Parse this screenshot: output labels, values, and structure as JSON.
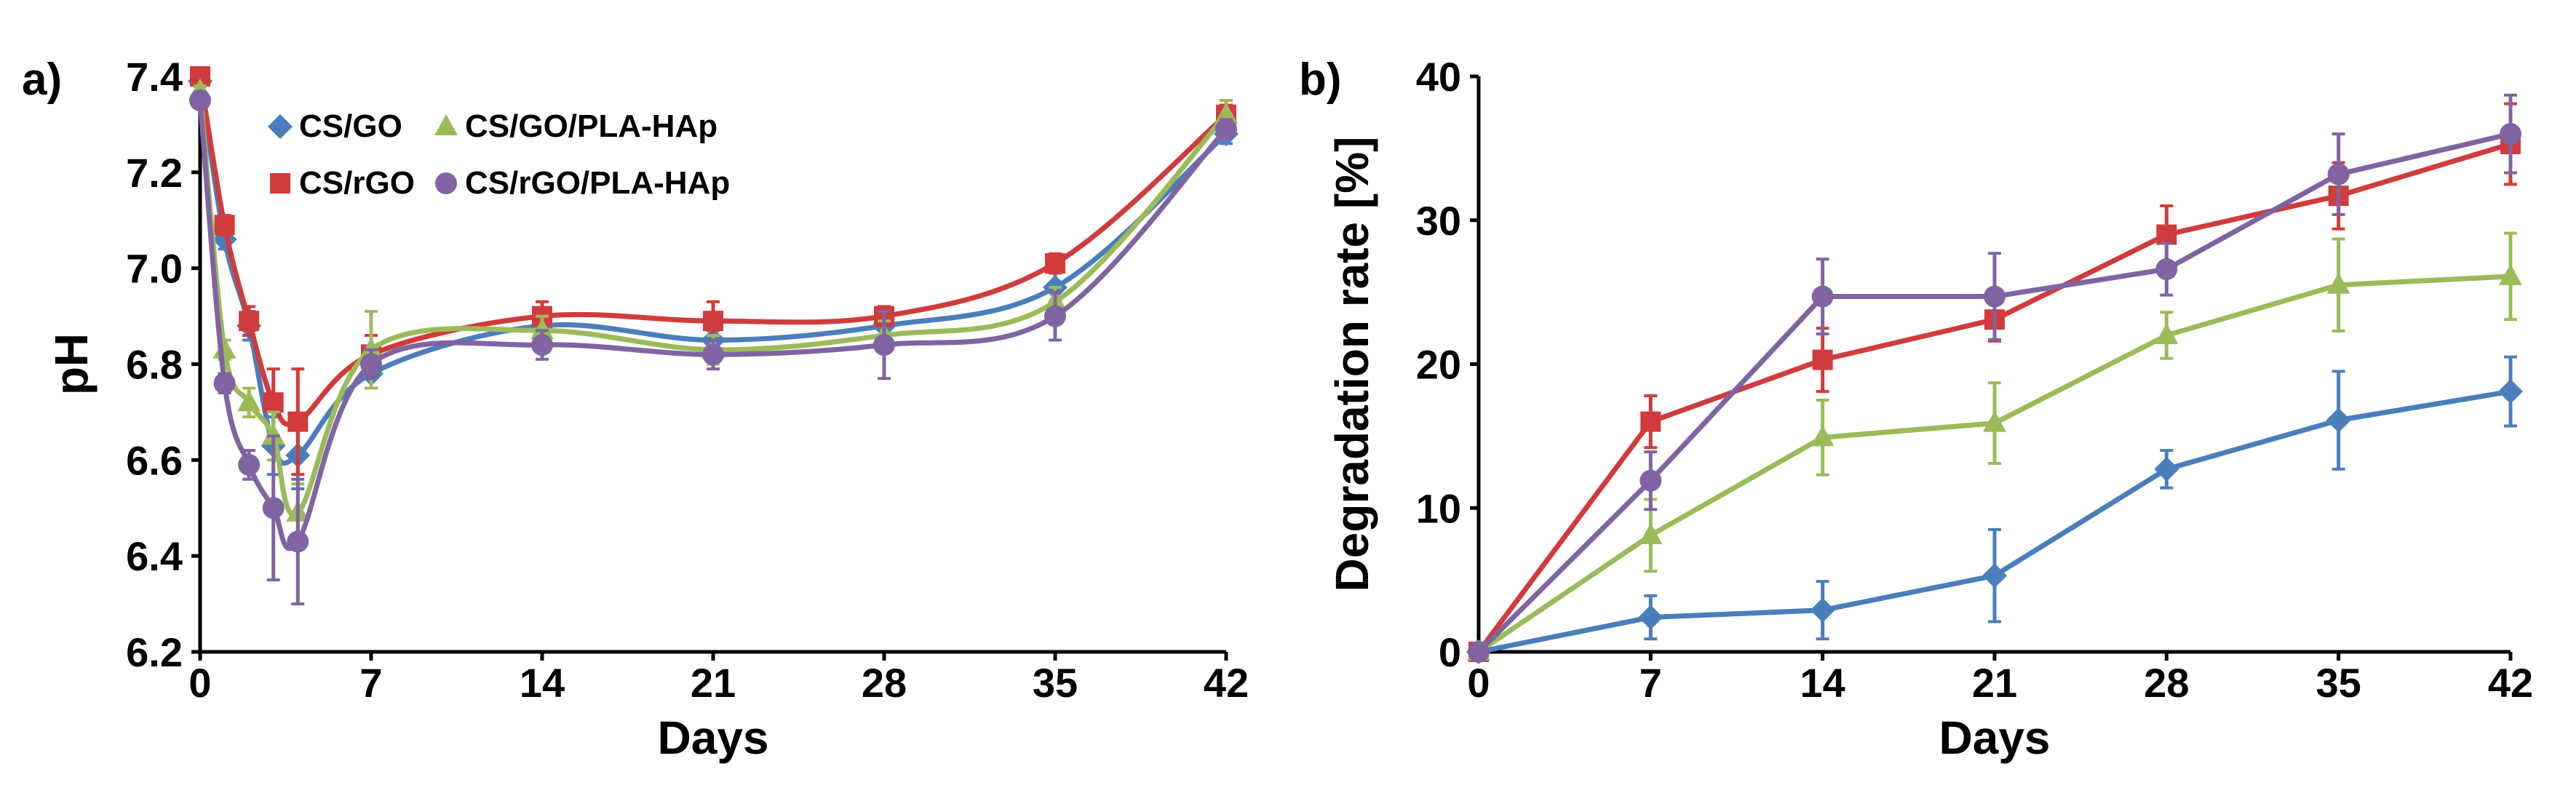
{
  "figure": {
    "panels": [
      "a)",
      "b)"
    ]
  },
  "colors": {
    "CS/GO": "#4a7ebb",
    "CS/rGO": "#d13b3b",
    "CS/GO/PLA-HAp": "#9bbb59",
    "CS/rGO/PLA-HAp": "#8064a2"
  },
  "chart_data": [
    {
      "panel": "a)",
      "type": "line",
      "title": "",
      "xlabel": "Days",
      "ylabel": "pH",
      "xlim": [
        0,
        42
      ],
      "ylim": [
        6.2,
        7.4
      ],
      "xticks": [
        0,
        7,
        14,
        21,
        28,
        35,
        42
      ],
      "yticks": [
        6.2,
        6.4,
        6.6,
        6.8,
        7.0,
        7.2,
        7.4
      ],
      "ytick_labels": [
        "6.2",
        "6.4",
        "6.6",
        "6.8",
        "7.0",
        "7.2",
        "7.4"
      ],
      "legend": [
        "CS/GO",
        "CS/GO/PLA-HAp",
        "CS/rGO",
        "CS/rGO/PLA-HAp"
      ],
      "legend_position": "top-left",
      "series": [
        {
          "name": "CS/GO",
          "marker": "diamond",
          "x": [
            0,
            1,
            2,
            3,
            4,
            7,
            14,
            21,
            28,
            35,
            42
          ],
          "y": [
            7.39,
            7.06,
            6.88,
            6.63,
            6.61,
            6.78,
            6.88,
            6.85,
            6.88,
            6.96,
            7.28
          ],
          "err": [
            0.01,
            0.02,
            0.03,
            0.06,
            0.07,
            0.03,
            0.02,
            0.02,
            0.02,
            0.03,
            0.02
          ]
        },
        {
          "name": "CS/rGO",
          "marker": "square",
          "x": [
            0,
            1,
            2,
            3,
            4,
            7,
            14,
            21,
            28,
            35,
            42
          ],
          "y": [
            7.4,
            7.09,
            6.89,
            6.72,
            6.68,
            6.82,
            6.9,
            6.89,
            6.9,
            7.01,
            7.32
          ],
          "err": [
            0.01,
            0.02,
            0.03,
            0.07,
            0.11,
            0.04,
            0.03,
            0.04,
            0.02,
            0.02,
            0.02
          ]
        },
        {
          "name": "CS/GO/PLA-HAp",
          "marker": "triangle",
          "x": [
            0,
            1,
            2,
            3,
            4,
            7,
            14,
            21,
            28,
            35,
            42
          ],
          "y": [
            7.37,
            6.83,
            6.72,
            6.65,
            6.49,
            6.83,
            6.87,
            6.83,
            6.86,
            6.93,
            7.32
          ],
          "err": [
            0.01,
            0.02,
            0.03,
            0.05,
            0.06,
            0.08,
            0.03,
            0.03,
            0.03,
            0.03,
            0.03
          ]
        },
        {
          "name": "CS/rGO/PLA-HAp",
          "marker": "circle",
          "x": [
            0,
            1,
            2,
            3,
            4,
            7,
            14,
            21,
            28,
            35,
            42
          ],
          "y": [
            7.35,
            6.76,
            6.59,
            6.5,
            6.43,
            6.8,
            6.84,
            6.82,
            6.84,
            6.9,
            7.29
          ],
          "err": [
            0.01,
            0.02,
            0.03,
            0.15,
            0.13,
            0.03,
            0.03,
            0.03,
            0.07,
            0.05,
            0.02
          ]
        }
      ]
    },
    {
      "panel": "b)",
      "type": "line",
      "title": "",
      "xlabel": "Days",
      "ylabel": "Degradation rate [%]",
      "xlim": [
        0,
        42
      ],
      "ylim": [
        0,
        40
      ],
      "xticks": [
        0,
        7,
        14,
        21,
        28,
        35,
        42
      ],
      "yticks": [
        0,
        10,
        20,
        30,
        40
      ],
      "ytick_labels": [
        "0",
        "10",
        "20",
        "30",
        "40"
      ],
      "series": [
        {
          "name": "CS/GO",
          "marker": "diamond",
          "x": [
            0,
            7,
            14,
            21,
            28,
            35,
            42
          ],
          "y": [
            0,
            2.4,
            2.9,
            5.3,
            12.7,
            16.1,
            18.1
          ],
          "err": [
            0.3,
            1.5,
            2.0,
            3.2,
            1.3,
            3.4,
            2.4
          ]
        },
        {
          "name": "CS/rGO",
          "marker": "square",
          "x": [
            0,
            7,
            14,
            21,
            28,
            35,
            42
          ],
          "y": [
            0,
            16.0,
            20.3,
            23.1,
            29.0,
            31.7,
            35.3
          ],
          "err": [
            0.3,
            1.8,
            2.2,
            1.5,
            2.0,
            2.3,
            2.8
          ]
        },
        {
          "name": "CS/GO/PLA-HAp",
          "marker": "triangle",
          "x": [
            0,
            7,
            14,
            21,
            28,
            35,
            42
          ],
          "y": [
            0,
            8.1,
            14.9,
            15.9,
            22.0,
            25.5,
            26.1
          ],
          "err": [
            0.3,
            2.5,
            2.6,
            2.8,
            1.6,
            3.2,
            3.0
          ]
        },
        {
          "name": "CS/rGO/PLA-HAp",
          "marker": "circle",
          "x": [
            0,
            7,
            14,
            21,
            28,
            35,
            42
          ],
          "y": [
            0,
            11.9,
            24.7,
            24.7,
            26.6,
            33.2,
            36.0
          ],
          "err": [
            0.3,
            2.0,
            2.6,
            3.0,
            1.8,
            2.8,
            2.7
          ]
        }
      ]
    }
  ]
}
